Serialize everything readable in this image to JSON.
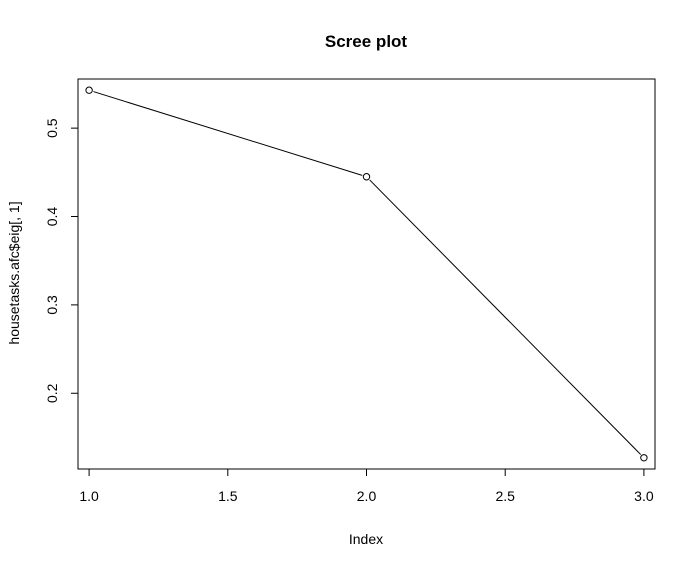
{
  "chart_data": {
    "type": "line",
    "title": "Scree plot",
    "xlabel": "Index",
    "ylabel": "housetasks.afc$eig[, 1]",
    "x": [
      1,
      2,
      3
    ],
    "y": [
      0.5429,
      0.445,
      0.127
    ],
    "xlim": [
      0.96,
      3.04
    ],
    "ylim": [
      0.1143,
      0.5556
    ],
    "xticks": [
      1.0,
      1.5,
      2.0,
      2.5,
      3.0
    ],
    "xtick_labels": [
      "1.0",
      "1.5",
      "2.0",
      "2.5",
      "3.0"
    ],
    "yticks": [
      0.2,
      0.3,
      0.4,
      0.5
    ],
    "ytick_labels": [
      "0.2",
      "0.3",
      "0.4",
      "0.5"
    ],
    "markers": "open-circle",
    "grid": false,
    "legend": "none",
    "line_color": "#000000"
  }
}
